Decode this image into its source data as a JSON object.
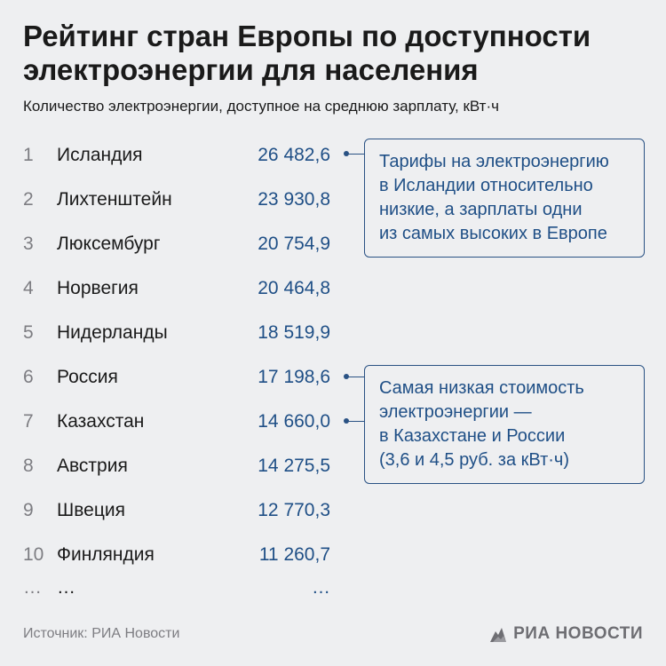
{
  "header": {
    "title": "Рейтинг стран Европы по доступности электроэнергии для населения",
    "subtitle": "Количество электроэнергии, доступное на среднюю зарплату, кВт·ч"
  },
  "chart_data": {
    "type": "table",
    "title": "Рейтинг стран Европы по доступности электроэнергии для населения",
    "subtitle": "Количество электроэнергии, доступное на среднюю зарплату, кВт·ч",
    "rows": [
      {
        "rank": "1",
        "country": "Исландия",
        "value": "26 482,6"
      },
      {
        "rank": "2",
        "country": "Лихтенштейн",
        "value": "23 930,8"
      },
      {
        "rank": "3",
        "country": "Люксембург",
        "value": "20 754,9"
      },
      {
        "rank": "4",
        "country": "Норвегия",
        "value": "20 464,8"
      },
      {
        "rank": "5",
        "country": "Нидерланды",
        "value": "18 519,9"
      },
      {
        "rank": "6",
        "country": "Россия",
        "value": "17 198,6"
      },
      {
        "rank": "7",
        "country": "Казахстан",
        "value": "14 660,0"
      },
      {
        "rank": "8",
        "country": "Австрия",
        "value": "14 275,5"
      },
      {
        "rank": "9",
        "country": "Швеция",
        "value": "12 770,3"
      },
      {
        "rank": "10",
        "country": "Финляндия",
        "value": "11 260,7"
      }
    ],
    "ellipsis": {
      "rank": "…",
      "country": "…",
      "value": "…"
    },
    "annotations": [
      "Тарифы на электроэнергию в Исландии относительно низкие, а зарплаты одни из самых высоких в Европе",
      "Самая низкая стоимость электроэнергии — в Казахстане и России (3,6 и 4,5 руб. за кВт·ч)"
    ]
  },
  "notes": {
    "iceland": [
      "Тарифы на электроэнергию",
      "в Исландии относительно",
      "низкие, а зарплаты одни",
      "из самых высоких в Европе"
    ],
    "low_cost": [
      "Самая низкая стоимость",
      "электроэнергии —",
      "в Казахстане и России",
      "(3,6 и 4,5 руб. за кВт·ч)"
    ]
  },
  "footer": {
    "source": "Источник: РИА Новости",
    "logo_text": "РИА НОВОСТИ"
  },
  "colors": {
    "accent": "#1f4f86",
    "background": "#eeeff1",
    "muted": "#7d7d82"
  }
}
